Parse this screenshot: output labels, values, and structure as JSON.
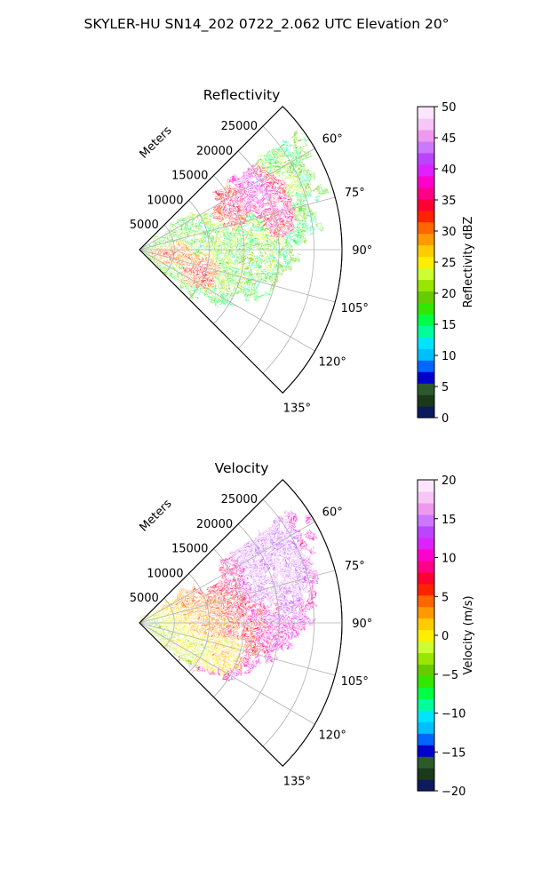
{
  "figure": {
    "suptitle": "SKYLER-HU  SN14_202  0722_2.062 UTC Elevation 20°",
    "range_axis_label": "Meters"
  },
  "chart_data": [
    {
      "type": "heatmap",
      "title": "Reflectivity",
      "projection": "polar sector",
      "theta_range_deg": [
        45,
        135
      ],
      "theta_ticks": [
        "60°",
        "75°",
        "90°",
        "105°",
        "120°",
        "135°"
      ],
      "r_max_m": 29000,
      "r_ticks": [
        "5000",
        "10000",
        "15000",
        "20000",
        "25000"
      ],
      "r_label": "Meters",
      "grid": true,
      "colorbar": {
        "label": "Reflectivity dBZ",
        "min": 0,
        "max": 50,
        "ticks": [
          "0",
          "5",
          "10",
          "15",
          "20",
          "25",
          "30",
          "35",
          "40",
          "45",
          "50"
        ],
        "colors": [
          "#0d1b5e",
          "#1a3a1a",
          "#2d5a2d",
          "#0000cc",
          "#0066ff",
          "#00bfff",
          "#00e5ff",
          "#00ff99",
          "#00ff44",
          "#33e600",
          "#66cc00",
          "#99e600",
          "#ccff33",
          "#ffee00",
          "#ffcc00",
          "#ff9900",
          "#ff6600",
          "#ff2200",
          "#ff0033",
          "#ff0088",
          "#ff00cc",
          "#dd22ff",
          "#bb44ff",
          "#cc77ff",
          "#ee99ee",
          "#f6c6f6",
          "#fde6fd"
        ]
      },
      "field_description_values_dbz": {
        "typical": 20,
        "cores": 35,
        "max": 40
      }
    },
    {
      "type": "heatmap",
      "title": "Velocity",
      "projection": "polar sector",
      "theta_range_deg": [
        45,
        135
      ],
      "theta_ticks": [
        "60°",
        "75°",
        "90°",
        "105°",
        "120°",
        "135°"
      ],
      "r_max_m": 29000,
      "r_ticks": [
        "5000",
        "10000",
        "15000",
        "20000",
        "25000"
      ],
      "r_label": "Meters",
      "grid": true,
      "colorbar": {
        "label": "Velocity (m/s)",
        "min": -20,
        "max": 20,
        "ticks": [
          "−20",
          "−15",
          "−10",
          "−5",
          "0",
          "5",
          "10",
          "15",
          "20"
        ],
        "colors": [
          "#0d1b5e",
          "#1a3a1a",
          "#2d5a2d",
          "#0000cc",
          "#0066ff",
          "#00bfff",
          "#00e5ff",
          "#00ff99",
          "#00ff44",
          "#33e600",
          "#66cc00",
          "#99e600",
          "#ccff33",
          "#ffee00",
          "#ffcc00",
          "#ff9900",
          "#ff6600",
          "#ff2200",
          "#ff0033",
          "#ff0088",
          "#ff00cc",
          "#dd22ff",
          "#bb44ff",
          "#cc77ff",
          "#ee99ee",
          "#f6c6f6",
          "#fde6fd"
        ]
      },
      "field_description_values_ms": {
        "near_radar": 0,
        "outer": 10,
        "max": 15
      }
    }
  ]
}
